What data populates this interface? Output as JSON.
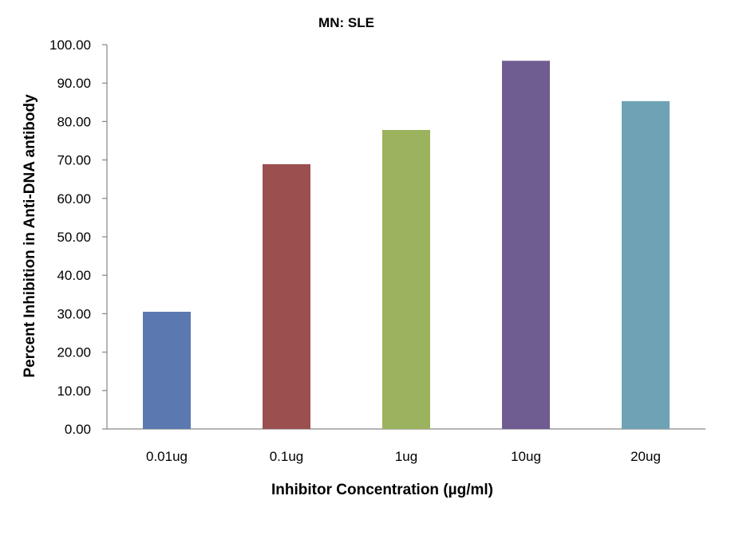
{
  "chart_data": {
    "type": "bar",
    "title": "MN: SLE",
    "xlabel": "Inhibitor Concentration (µg/ml)",
    "ylabel": "Percent Inhibition in Anti-DNA antibody",
    "categories": [
      "0.01ug",
      "0.1ug",
      "1ug",
      "10ug",
      "20ug"
    ],
    "values": [
      30.5,
      68.9,
      77.8,
      95.8,
      85.3
    ],
    "bar_colors": [
      "#5b78b0",
      "#9b4f4f",
      "#9bb35e",
      "#6f5c91",
      "#6ea2b4"
    ],
    "ylim": [
      0,
      100
    ],
    "yticks": [
      "0.00",
      "10.00",
      "20.00",
      "30.00",
      "40.00",
      "50.00",
      "60.00",
      "70.00",
      "80.00",
      "90.00",
      "100.00"
    ],
    "grid": false,
    "legend": "none"
  }
}
